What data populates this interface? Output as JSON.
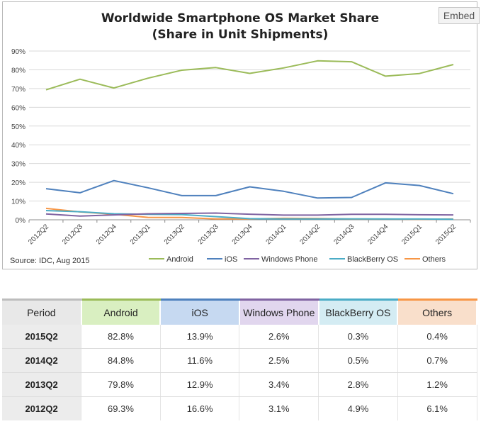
{
  "chart_data": {
    "type": "line",
    "title": "Worldwide Smartphone OS Market Share",
    "subtitle": "(Share in Unit Shipments)",
    "categories": [
      "2012Q2",
      "2012Q3",
      "2012Q4",
      "2013Q1",
      "2013Q2",
      "2013Q3",
      "2013Q4",
      "2014Q1",
      "2014Q2",
      "2014Q3",
      "2014Q4",
      "2015Q1",
      "2015Q2"
    ],
    "ylim": [
      0,
      90
    ],
    "yticks": [
      "0%",
      "10%",
      "20%",
      "30%",
      "40%",
      "50%",
      "60%",
      "70%",
      "80%",
      "90%"
    ],
    "grid": true,
    "legend_position": "bottom",
    "source": "Source: IDC, Aug 2015",
    "series": [
      {
        "name": "Android",
        "color": "#9bbb59",
        "values": [
          69.3,
          75.0,
          70.3,
          75.5,
          79.8,
          81.2,
          78.1,
          81.0,
          84.8,
          84.3,
          76.6,
          78.0,
          82.8
        ]
      },
      {
        "name": "iOS",
        "color": "#4f81bd",
        "values": [
          16.6,
          14.4,
          20.9,
          17.1,
          12.9,
          12.9,
          17.6,
          15.2,
          11.6,
          11.9,
          19.7,
          18.3,
          13.9
        ]
      },
      {
        "name": "Windows Phone",
        "color": "#8064a2",
        "values": [
          3.1,
          2.0,
          2.6,
          3.2,
          3.4,
          3.6,
          3.0,
          2.5,
          2.5,
          2.9,
          2.9,
          2.7,
          2.6
        ]
      },
      {
        "name": "BlackBerry OS",
        "color": "#4bacc6",
        "values": [
          4.9,
          4.3,
          3.2,
          2.9,
          2.8,
          1.7,
          0.6,
          0.5,
          0.5,
          0.5,
          0.4,
          0.4,
          0.3
        ]
      },
      {
        "name": "Others",
        "color": "#f79646",
        "values": [
          6.1,
          4.2,
          3.0,
          1.3,
          1.2,
          0.5,
          0.5,
          0.8,
          0.7,
          0.4,
          0.4,
          0.3,
          0.4
        ]
      }
    ]
  },
  "embed_label": "Embed",
  "table": {
    "headers": [
      {
        "label": "Period",
        "color": "#e8e8e8",
        "border": "#bdbdbd"
      },
      {
        "label": "Android",
        "color": "#d9efc1",
        "border": "#9bbb59"
      },
      {
        "label": "iOS",
        "color": "#c6d9f1",
        "border": "#4f81bd"
      },
      {
        "label": "Windows Phone",
        "color": "#e1d6ee",
        "border": "#8064a2"
      },
      {
        "label": "BlackBerry OS",
        "color": "#d4ecf3",
        "border": "#4bacc6"
      },
      {
        "label": "Others",
        "color": "#f9dfcb",
        "border": "#f79646"
      }
    ],
    "rows": [
      [
        "2015Q2",
        "82.8%",
        "13.9%",
        "2.6%",
        "0.3%",
        "0.4%"
      ],
      [
        "2014Q2",
        "84.8%",
        "11.6%",
        "2.5%",
        "0.5%",
        "0.7%"
      ],
      [
        "2013Q2",
        "79.8%",
        "12.9%",
        "3.4%",
        "2.8%",
        "1.2%"
      ],
      [
        "2012Q2",
        "69.3%",
        "16.6%",
        "3.1%",
        "4.9%",
        "6.1%"
      ]
    ]
  }
}
